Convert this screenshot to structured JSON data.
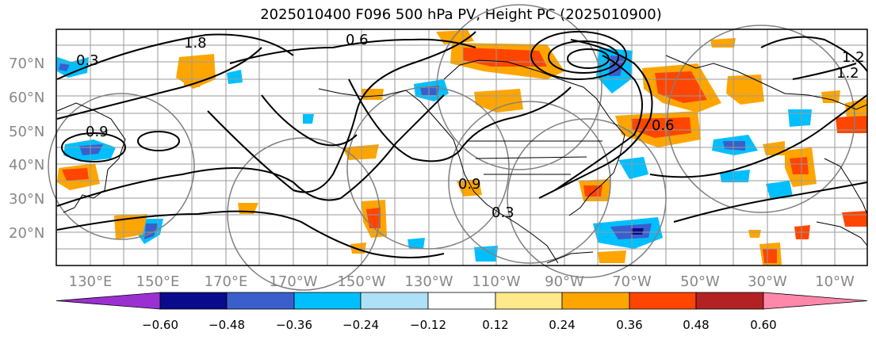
{
  "title": "2025010400 F096 500 hPa PV, Height PC (2025010900)",
  "map": {
    "lat_labels": [
      "70°N",
      "60°N",
      "50°N",
      "40°N",
      "30°N",
      "20°N"
    ],
    "lon_labels": [
      "130°E",
      "150°E",
      "170°E",
      "170°W",
      "150°W",
      "130°W",
      "110°W",
      "90°W",
      "70°W",
      "50°W",
      "30°W",
      "10°W"
    ],
    "contour_labels": [
      "1.8",
      "1.2",
      "0.6",
      "0.9",
      "0.3",
      "0.6",
      "1.2",
      "0.3",
      "0.9"
    ]
  },
  "colorbar": {
    "ticks": [
      "−0.60",
      "−0.48",
      "−0.36",
      "−0.24",
      "−0.12",
      "0.12",
      "0.24",
      "0.36",
      "0.48",
      "0.60"
    ],
    "colors": [
      "#9b30d0",
      "#0a0a8c",
      "#3a5fcd",
      "#00bfff",
      "#aee0f8",
      "#ffffff",
      "#ffe98a",
      "#ffa500",
      "#ff4500",
      "#b22222",
      "#ff88aa"
    ]
  }
}
